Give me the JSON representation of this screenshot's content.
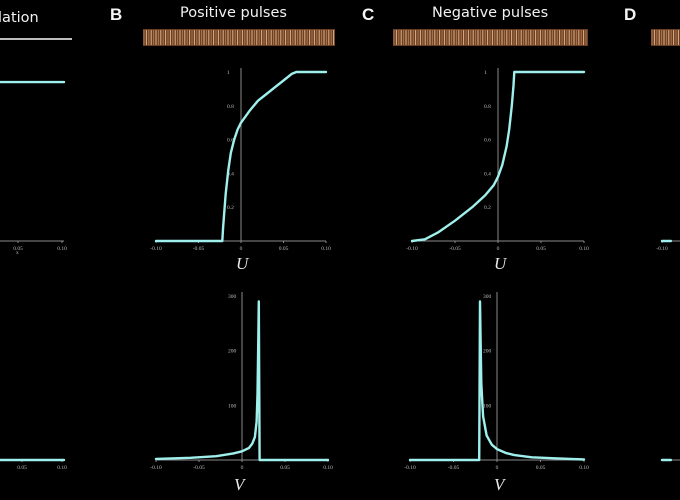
{
  "panels": [
    {
      "letter": "",
      "title": "ılation",
      "stimulus": "none"
    },
    {
      "letter": "B",
      "title": "Positive pulses",
      "stimulus": "orange-vertical-stripes"
    },
    {
      "letter": "C",
      "title": "Negative pulses",
      "stimulus": "orange-vertical-stripes"
    },
    {
      "letter": "D",
      "title": "",
      "stimulus": "orange-vertical-stripes"
    }
  ],
  "colors": {
    "curve": "#9ff0ec",
    "axis": "#8a8a8a",
    "stimulus": "#c98e62",
    "background": "#000000"
  },
  "chart_data": [
    {
      "id": "A-top",
      "type": "line",
      "xlabel": "",
      "xlim": [
        -0.1,
        0.1
      ],
      "ylim": [
        0,
        1
      ],
      "x_ticks": [
        "0.05",
        "0.10"
      ],
      "y_ticks": [],
      "series": [
        {
          "x": [
            -0.1,
            0.1
          ],
          "y": [
            0.94,
            0.94
          ]
        }
      ]
    },
    {
      "id": "B-top",
      "type": "line",
      "xlabel": "U",
      "xlim": [
        -0.1,
        0.1
      ],
      "ylim": [
        0,
        1
      ],
      "x_ticks": [
        "-0.10",
        "-0.05",
        "0",
        "0.05",
        "0.10"
      ],
      "y_ticks": [
        "0.2",
        "0.4",
        "0.6",
        "0.8",
        "1"
      ],
      "series": [
        {
          "x": [
            -0.1,
            -0.022,
            -0.021,
            -0.018,
            -0.015,
            -0.012,
            -0.008,
            -0.004,
            0.0,
            0.01,
            0.02,
            0.03,
            0.04,
            0.05,
            0.06,
            0.065,
            0.08,
            0.1
          ],
          "y": [
            0,
            0,
            0.08,
            0.28,
            0.42,
            0.52,
            0.6,
            0.66,
            0.7,
            0.77,
            0.83,
            0.87,
            0.91,
            0.95,
            0.99,
            1.0,
            1.0,
            1.0
          ]
        }
      ]
    },
    {
      "id": "C-top",
      "type": "line",
      "xlabel": "U",
      "xlim": [
        -0.1,
        0.1
      ],
      "ylim": [
        0,
        1
      ],
      "x_ticks": [
        "-0.10",
        "-0.05",
        "0",
        "0.05",
        "0.10"
      ],
      "y_ticks": [
        "0.2",
        "0.4",
        "0.6",
        "0.8",
        "1"
      ],
      "series": [
        {
          "x": [
            -0.1,
            -0.085,
            -0.07,
            -0.05,
            -0.03,
            -0.015,
            -0.005,
            0.0,
            0.005,
            0.01,
            0.013,
            0.016,
            0.018,
            0.019,
            0.05,
            0.1
          ],
          "y": [
            0,
            0.01,
            0.05,
            0.12,
            0.2,
            0.27,
            0.33,
            0.38,
            0.45,
            0.56,
            0.66,
            0.8,
            0.92,
            1.0,
            1.0,
            1.0
          ]
        }
      ]
    },
    {
      "id": "D-top",
      "type": "line",
      "xlabel": "",
      "xlim": [
        -0.1,
        0.1
      ],
      "ylim": [
        0,
        1
      ],
      "x_ticks": [
        "-0.10"
      ],
      "y_ticks": [],
      "series": [
        {
          "x": [
            -0.1,
            -0.09
          ],
          "y": [
            0,
            0
          ]
        }
      ]
    },
    {
      "id": "A-bottom",
      "type": "line",
      "xlabel": "",
      "xlim": [
        -0.1,
        0.1
      ],
      "ylim": [
        0,
        300
      ],
      "x_ticks": [
        "0.05",
        "0.10"
      ],
      "y_ticks": [],
      "series": [
        {
          "x": [
            -0.1,
            0.1
          ],
          "y": [
            0,
            0
          ]
        }
      ]
    },
    {
      "id": "B-bottom",
      "type": "line",
      "xlabel": "V",
      "xlim": [
        -0.1,
        0.1
      ],
      "ylim": [
        0,
        300
      ],
      "x_ticks": [
        "-0.10",
        "-0.05",
        "0",
        "0.05",
        "0.10"
      ],
      "y_ticks": [
        "100",
        "200",
        "300"
      ],
      "series": [
        {
          "x": [
            -0.1,
            -0.06,
            -0.03,
            -0.01,
            0.0,
            0.008,
            0.012,
            0.015,
            0.017,
            0.018,
            0.019,
            0.0195,
            0.0205,
            0.022,
            0.026,
            0.04,
            0.07,
            0.1
          ],
          "y": [
            2,
            4,
            7,
            12,
            16,
            22,
            30,
            42,
            70,
            120,
            220,
            290,
            0,
            0,
            0,
            0,
            0,
            0
          ]
        }
      ]
    },
    {
      "id": "C-bottom",
      "type": "line",
      "xlabel": "V",
      "xlim": [
        -0.1,
        0.1
      ],
      "ylim": [
        0,
        300
      ],
      "x_ticks": [
        "-0.10",
        "-0.05",
        "0",
        "0.05",
        "0.10"
      ],
      "y_ticks": [
        "100",
        "200",
        "300"
      ],
      "series": [
        {
          "x": [
            -0.1,
            -0.06,
            -0.025,
            -0.0205,
            -0.0195,
            -0.019,
            -0.018,
            -0.016,
            -0.012,
            -0.006,
            0.0,
            0.01,
            0.02,
            0.04,
            0.07,
            0.1
          ],
          "y": [
            0,
            0,
            0,
            0,
            290,
            230,
            140,
            80,
            45,
            28,
            20,
            13,
            9,
            5,
            3,
            1
          ]
        }
      ]
    },
    {
      "id": "D-bottom",
      "type": "line",
      "xlabel": "",
      "xlim": [
        -0.1,
        0.1
      ],
      "ylim": [
        0,
        300
      ],
      "x_ticks": [],
      "y_ticks": [],
      "series": [
        {
          "x": [
            -0.1,
            -0.09
          ],
          "y": [
            0,
            0
          ]
        }
      ]
    }
  ]
}
